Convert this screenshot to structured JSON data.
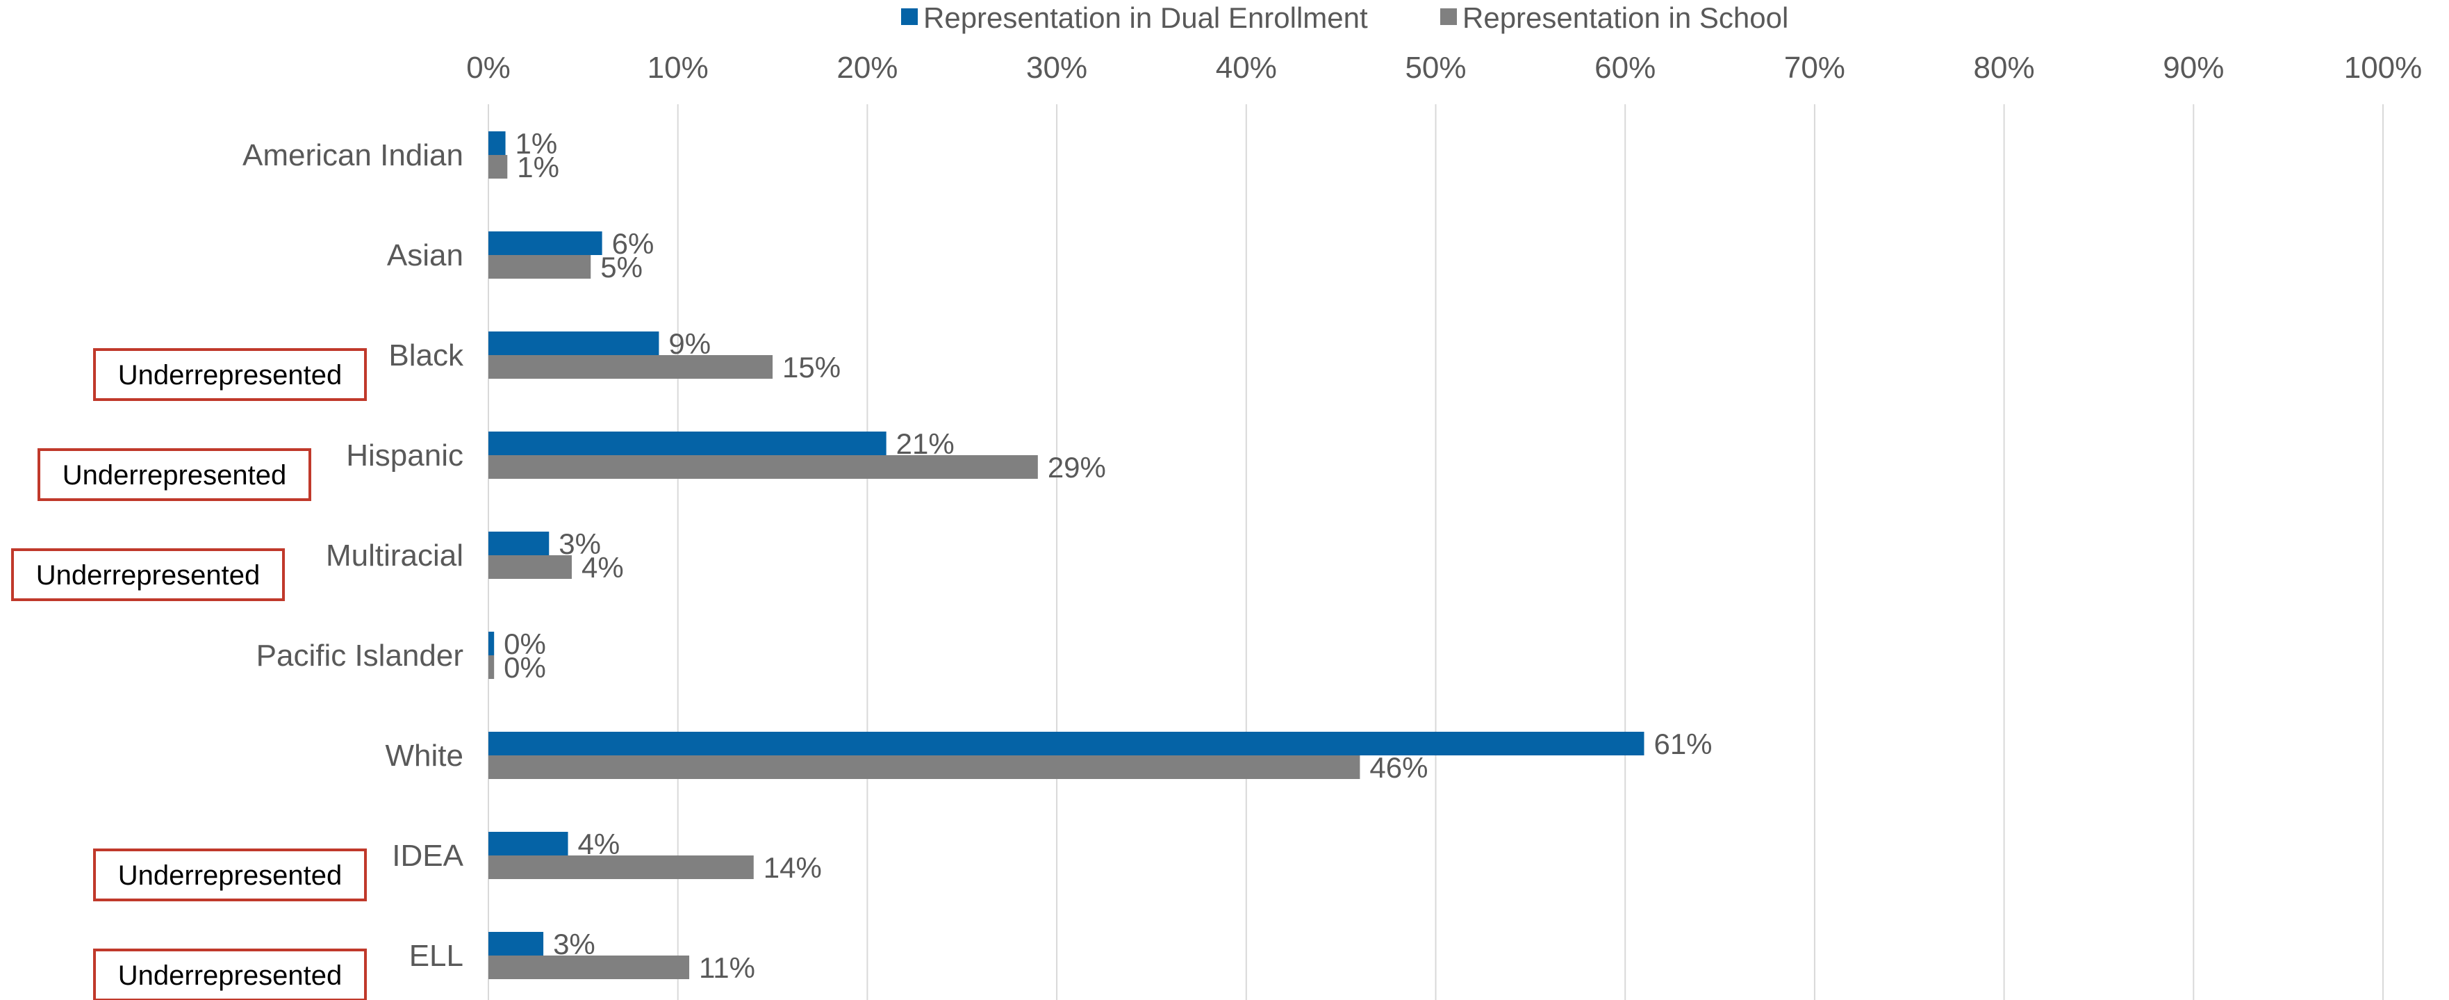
{
  "chart_data": {
    "type": "bar",
    "orientation": "horizontal",
    "categories": [
      "American Indian",
      "Asian",
      "Black",
      "Hispanic",
      "Multiracial",
      "Pacific Islander",
      "White",
      "IDEA",
      "ELL"
    ],
    "series": [
      {
        "name": "Representation in Dual Enrollment",
        "color": "#0563A6",
        "values": [
          0.9,
          6,
          9,
          21,
          3.2,
          0.3,
          61,
          4.2,
          2.9
        ],
        "labels": [
          "1%",
          "6%",
          "9%",
          "21%",
          "3%",
          "0%",
          "61%",
          "4%",
          "3%"
        ]
      },
      {
        "name": "Representation in School",
        "color": "#808080",
        "values": [
          1,
          5.4,
          15,
          29,
          4.4,
          0.3,
          46,
          14,
          10.6
        ],
        "labels": [
          "1%",
          "5%",
          "15%",
          "29%",
          "4%",
          "0%",
          "46%",
          "14%",
          "11%"
        ]
      }
    ],
    "xlim": [
      0,
      100
    ],
    "x_ticks": [
      "0%",
      "10%",
      "20%",
      "30%",
      "40%",
      "50%",
      "60%",
      "70%",
      "80%",
      "90%",
      "100%"
    ],
    "x_axis_position": "top",
    "grid": "vertical",
    "legend_position": "top",
    "annotations": [
      {
        "category": "Black",
        "text": "Underrepresented"
      },
      {
        "category": "Hispanic",
        "text": "Underrepresented"
      },
      {
        "category": "Multiracial",
        "text": "Underrepresented"
      },
      {
        "category": "IDEA",
        "text": "Underrepresented"
      },
      {
        "category": "ELL",
        "text": "Underrepresented"
      }
    ],
    "annotation_box_color": "#C0392B",
    "gridline_color": "#D9D9D9",
    "text_color": "#595959"
  }
}
